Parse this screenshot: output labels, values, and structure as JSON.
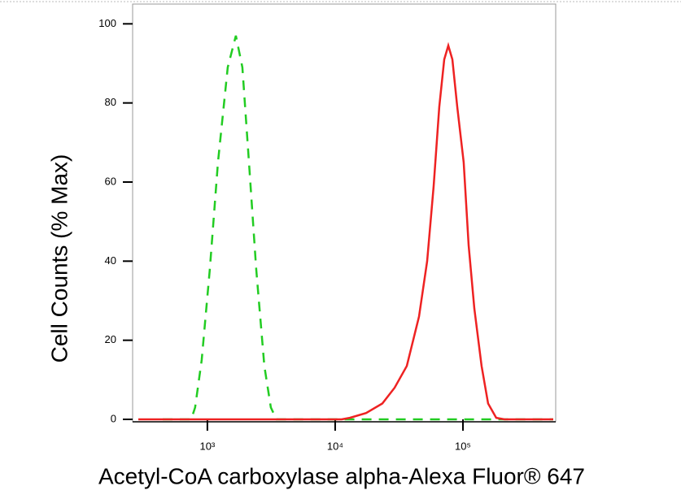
{
  "chart_data": {
    "type": "line",
    "x_label": "Acetyl-CoA carboxylase alpha-Alexa Fluor® 647",
    "y_label": "Cell Counts (% Max)",
    "xlim": [
      260,
      532000
    ],
    "xscale": "log",
    "xticks": [
      {
        "value": 1000,
        "label": "10³"
      },
      {
        "value": 10000,
        "label": "10⁴"
      },
      {
        "value": 100000,
        "label": "10⁵"
      }
    ],
    "ylim": [
      0,
      105
    ],
    "yticks": [
      0,
      20,
      40,
      60,
      80,
      100
    ],
    "series": [
      {
        "color": "#22cc22",
        "dash": true,
        "x": [
          447,
          747,
          802,
          903,
          1045,
          1210,
          1443,
          1670,
          1880,
          2115,
          2412,
          2790,
          3140,
          3475,
          509000
        ],
        "values": [
          0,
          0,
          3,
          15,
          38,
          65,
          89,
          97,
          89,
          65,
          38,
          13.5,
          3,
          0,
          0
        ]
      },
      {
        "color": "#ee2222",
        "dash": false,
        "x": [
          288,
          11240,
          13030,
          17470,
          23400,
          29170,
          36370,
          45300,
          52500,
          59000,
          65300,
          71400,
          76800,
          82600,
          90200,
          101400,
          110900,
          122800,
          140000,
          157400,
          182300,
          211200,
          509000
        ],
        "values": [
          0,
          0,
          0.4,
          1.6,
          4,
          8,
          13.5,
          26,
          40,
          59,
          79,
          91,
          94.5,
          91,
          79,
          65,
          44,
          28,
          13.5,
          4,
          0.4,
          0,
          0
        ]
      }
    ]
  }
}
